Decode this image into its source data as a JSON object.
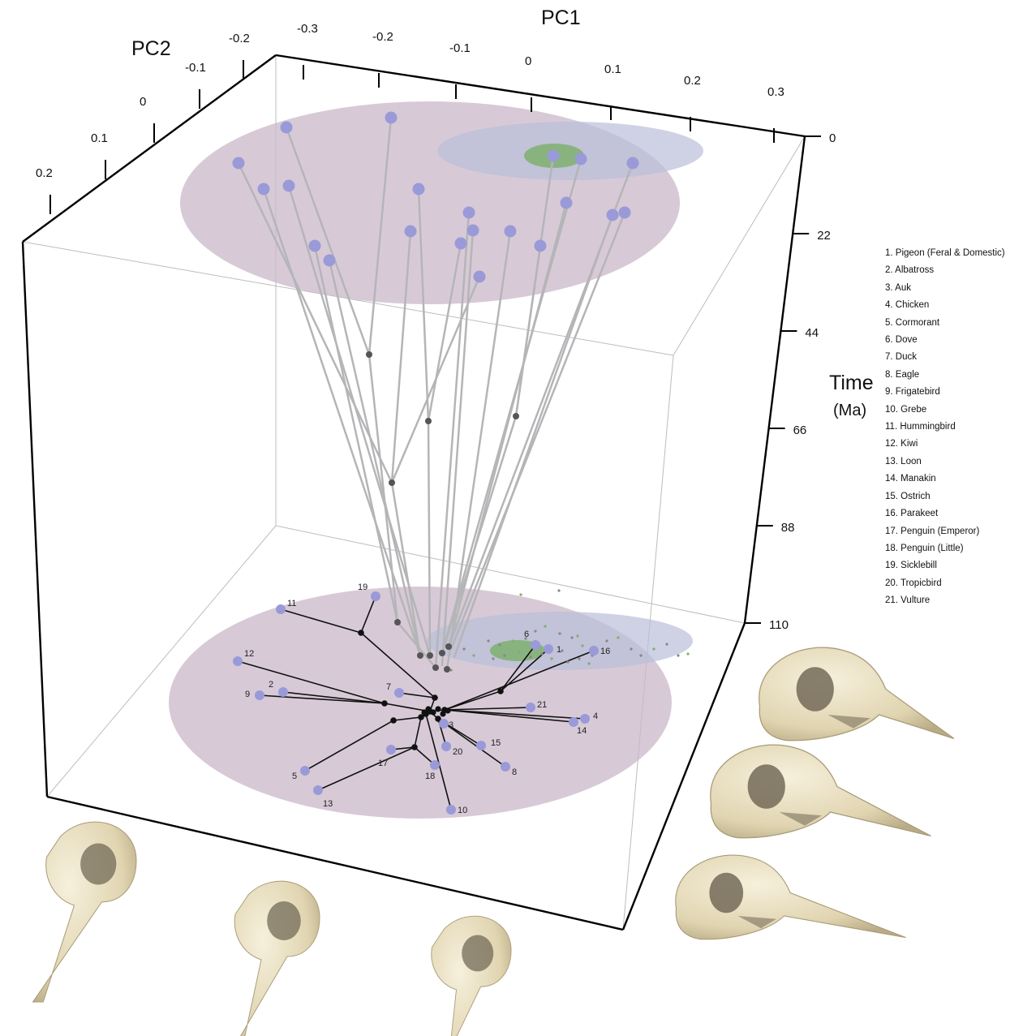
{
  "chart_data": {
    "type": "scatter",
    "title": "",
    "axes": {
      "x": {
        "label": "PC1",
        "ticks": [
          "-0.3",
          "-0.2",
          "-0.1",
          "0",
          "0.1",
          "0.2",
          "0.3"
        ]
      },
      "y": {
        "label": "PC2",
        "ticks": [
          "-0.2",
          "-0.1",
          "0",
          "0.1",
          "0.2"
        ]
      },
      "z": {
        "label": "Time",
        "unit": "(Ma)",
        "ticks": [
          "0",
          "22",
          "44",
          "66",
          "88",
          "110"
        ],
        "range": [
          0,
          110
        ]
      }
    },
    "tip_labels": [
      "1",
      "2",
      "3",
      "4",
      "5",
      "6",
      "7",
      "8",
      "9",
      "10",
      "11",
      "12",
      "13",
      "14",
      "15",
      "16",
      "17",
      "18",
      "19",
      "20",
      "21"
    ],
    "legend": [
      "1. Pigeon (Feral & Domestic)",
      "2. Albatross",
      "3. Auk",
      "4. Chicken",
      "5. Cormorant",
      "6. Dove",
      "7. Duck",
      "8. Eagle",
      "9. Frigatebird",
      "10. Grebe",
      "11. Hummingbird",
      "12. Kiwi",
      "13. Loon",
      "14. Manakin",
      "15. Ostrich",
      "16. Parakeet",
      "17. Penguin (Emperor)",
      "18. Penguin (Little)",
      "19. Sicklebill",
      "20. Tropicbird",
      "21. Vulture"
    ],
    "colors": {
      "tip_point": "#9a9ad8",
      "node_point": "#111111",
      "ancestral_node": "#555555",
      "aves_region": "#c9b8c8",
      "columbiformes_region": "#b9bfd8",
      "pigeon_region": "#7fb06e",
      "skull": "#e6dcc0"
    }
  }
}
